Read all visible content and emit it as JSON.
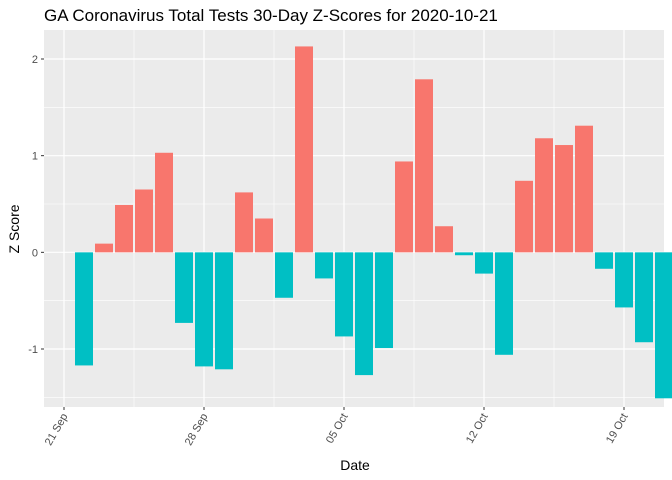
{
  "chart_data": {
    "type": "bar",
    "title": "GA Coronavirus Total Tests 30-Day Z-Scores for 2020-10-21",
    "xlabel": "Date",
    "ylabel": "Z Score",
    "x_tick_labels": [
      "21 Sep",
      "28 Sep",
      "05 Oct",
      "12 Oct",
      "19 Oct"
    ],
    "x_tick_dates": [
      "2020-09-21",
      "2020-09-28",
      "2020-10-05",
      "2020-10-12",
      "2020-10-19"
    ],
    "y_ticks": [
      -1,
      0,
      1,
      2
    ],
    "y_tick_labels": [
      "-1",
      "0",
      "1",
      "2"
    ],
    "xlim": [
      "2020-09-20",
      "2020-10-21"
    ],
    "ylim": [
      -1.6,
      2.3
    ],
    "grid": true,
    "legend": "none",
    "colors": {
      "positive": "#F8766D",
      "negative": "#00BFC4",
      "panel": "#EBEBEB",
      "grid": "#FFFFFF"
    },
    "x": [
      "2020-09-22",
      "2020-09-23",
      "2020-09-24",
      "2020-09-25",
      "2020-09-26",
      "2020-09-27",
      "2020-09-28",
      "2020-09-29",
      "2020-09-30",
      "2020-10-01",
      "2020-10-02",
      "2020-10-03",
      "2020-10-04",
      "2020-10-05",
      "2020-10-06",
      "2020-10-07",
      "2020-10-08",
      "2020-10-09",
      "2020-10-10",
      "2020-10-11",
      "2020-10-12",
      "2020-10-13",
      "2020-10-14",
      "2020-10-15",
      "2020-10-16",
      "2020-10-17",
      "2020-10-18",
      "2020-10-19",
      "2020-10-20",
      "2020-10-21"
    ],
    "values": [
      -1.17,
      0.09,
      0.49,
      0.65,
      1.03,
      -0.73,
      -1.18,
      -1.21,
      0.62,
      0.35,
      -0.47,
      2.13,
      -0.27,
      -0.87,
      -1.27,
      -0.99,
      0.94,
      1.79,
      0.27,
      -0.03,
      -0.22,
      -1.06,
      0.74,
      1.18,
      1.11,
      1.31,
      -0.17,
      -0.57,
      -0.93,
      -1.51
    ]
  }
}
